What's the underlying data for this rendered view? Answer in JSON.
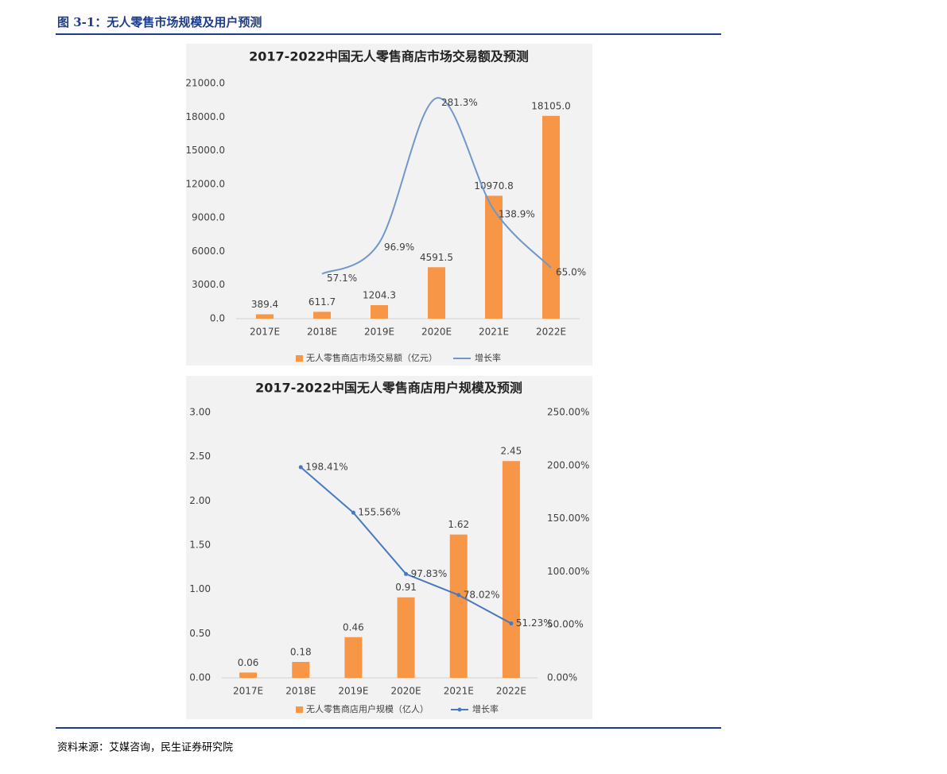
{
  "header": {
    "title": "图 3-1：无人零售市场规模及用户预测"
  },
  "chart_data": [
    {
      "type": "combo",
      "title": "2017-2022中国无人零售商店市场交易额及预测",
      "categories": [
        "2017E",
        "2018E",
        "2019E",
        "2020E",
        "2021E",
        "2022E"
      ],
      "ylim": [
        0,
        21000
      ],
      "yticks": [
        {
          "value": 0,
          "label": "0.0"
        },
        {
          "value": 3000,
          "label": "3000.0"
        },
        {
          "value": 6000,
          "label": "6000.0"
        },
        {
          "value": 9000,
          "label": "9000.0"
        },
        {
          "value": 12000,
          "label": "12000.0"
        },
        {
          "value": 15000,
          "label": "15000.0"
        },
        {
          "value": 18000,
          "label": "18000.0"
        },
        {
          "value": 21000,
          "label": "21000.0"
        }
      ],
      "y2lim": [
        0,
        300
      ],
      "series": [
        {
          "name": "无人零售商店市场交易额（亿元）",
          "type": "bar",
          "color": "#f79646",
          "values": [
            389.4,
            611.7,
            1204.3,
            4591.5,
            10970.8,
            18105.0
          ],
          "value_labels": [
            "389.4",
            "611.7",
            "1204.3",
            "4591.5",
            "10970.8",
            "18105.0"
          ]
        },
        {
          "name": "增长率",
          "type": "line",
          "axis": "y2",
          "color": "#7097cc",
          "smooth": true,
          "values": [
            null,
            57.1,
            96.9,
            281.3,
            138.9,
            65.0
          ],
          "value_labels": [
            null,
            "57.1%",
            "96.9%",
            "281.3%",
            "138.9%",
            "65.0%"
          ]
        }
      ]
    },
    {
      "type": "combo",
      "title": "2017-2022中国无人零售商店用户规模及预测",
      "categories": [
        "2017E",
        "2018E",
        "2019E",
        "2020E",
        "2021E",
        "2022E"
      ],
      "ylim": [
        0,
        3
      ],
      "yticks": [
        {
          "value": 0,
          "label": "0.00"
        },
        {
          "value": 0.5,
          "label": "0.50"
        },
        {
          "value": 1,
          "label": "1.00"
        },
        {
          "value": 1.5,
          "label": "1.50"
        },
        {
          "value": 2,
          "label": "2.00"
        },
        {
          "value": 2.5,
          "label": "2.50"
        },
        {
          "value": 3,
          "label": "3.00"
        }
      ],
      "y2lim": [
        0,
        250
      ],
      "y2ticks": [
        {
          "value": 0,
          "label": "0.00%"
        },
        {
          "value": 50,
          "label": "50.00%"
        },
        {
          "value": 100,
          "label": "100.00%"
        },
        {
          "value": 150,
          "label": "150.00%"
        },
        {
          "value": 200,
          "label": "200.00%"
        },
        {
          "value": 250,
          "label": "250.00%"
        }
      ],
      "series": [
        {
          "name": "无人零售商店用户规模（亿人）",
          "type": "bar",
          "color": "#f79646",
          "values": [
            0.06,
            0.18,
            0.46,
            0.91,
            1.62,
            2.45
          ]
        },
        {
          "name": "增长率",
          "type": "line",
          "axis": "y2",
          "color": "#4a78c0",
          "marker": true,
          "values": [
            null,
            198.41,
            155.56,
            97.83,
            78.02,
            51.23
          ],
          "value_labels": [
            null,
            "198.41%",
            "155.56%",
            "97.83%",
            "78.02%",
            "51.23%"
          ]
        }
      ]
    }
  ],
  "source": "资料来源：艾媒咨询，民生证券研究院"
}
